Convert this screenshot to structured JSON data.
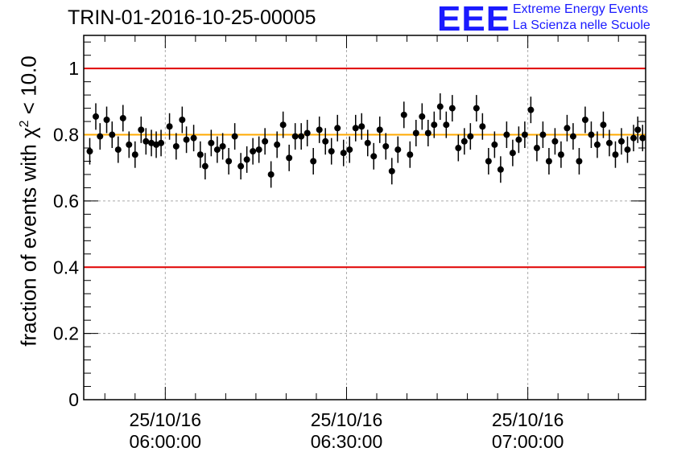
{
  "chart_data": {
    "type": "scatter",
    "title": "TRIN-01-2016-10-25-00005",
    "ylabel_pre": "fraction of events with ",
    "ylabel_chi": "χ",
    "ylabel_sup": "2",
    "ylabel_post": " < 10.0",
    "xlabel": "",
    "ylim": [
      0,
      1.1
    ],
    "yticks": [
      "0",
      "0.2",
      "0.4",
      "0.6",
      "0.8",
      "1"
    ],
    "xlim_minutes": [
      -13.5,
      79.5
    ],
    "xticks": [
      {
        "minute": 0,
        "date": "25/10/16",
        "time": "06:00:00"
      },
      {
        "minute": 30,
        "date": "25/10/16",
        "time": "06:30:00"
      },
      {
        "minute": 60,
        "date": "25/10/16",
        "time": "07:00:00"
      }
    ],
    "reference_lines": [
      {
        "y": 1.0,
        "color": "#e00000"
      },
      {
        "y": 0.4,
        "color": "#e00000"
      },
      {
        "y": 0.8,
        "color": "#ffaa00"
      }
    ],
    "error": 0.04,
    "points": [
      {
        "x": -12.5,
        "y": 0.75
      },
      {
        "x": -11.5,
        "y": 0.855
      },
      {
        "x": -10.8,
        "y": 0.795
      },
      {
        "x": -9.7,
        "y": 0.845
      },
      {
        "x": -8.8,
        "y": 0.8
      },
      {
        "x": -7.8,
        "y": 0.755
      },
      {
        "x": -7.0,
        "y": 0.85
      },
      {
        "x": -6.0,
        "y": 0.77
      },
      {
        "x": -5.0,
        "y": 0.74
      },
      {
        "x": -4.0,
        "y": 0.815
      },
      {
        "x": -3.2,
        "y": 0.78
      },
      {
        "x": -2.3,
        "y": 0.775
      },
      {
        "x": -1.5,
        "y": 0.77
      },
      {
        "x": -0.7,
        "y": 0.775
      },
      {
        "x": 0.7,
        "y": 0.825
      },
      {
        "x": 1.8,
        "y": 0.765
      },
      {
        "x": 2.8,
        "y": 0.845
      },
      {
        "x": 3.5,
        "y": 0.785
      },
      {
        "x": 4.7,
        "y": 0.79
      },
      {
        "x": 5.8,
        "y": 0.74
      },
      {
        "x": 6.6,
        "y": 0.705
      },
      {
        "x": 7.6,
        "y": 0.775
      },
      {
        "x": 8.6,
        "y": 0.755
      },
      {
        "x": 9.5,
        "y": 0.765
      },
      {
        "x": 10.5,
        "y": 0.72
      },
      {
        "x": 11.5,
        "y": 0.795
      },
      {
        "x": 12.5,
        "y": 0.705
      },
      {
        "x": 13.5,
        "y": 0.725
      },
      {
        "x": 14.5,
        "y": 0.75
      },
      {
        "x": 15.5,
        "y": 0.755
      },
      {
        "x": 16.5,
        "y": 0.78
      },
      {
        "x": 17.5,
        "y": 0.68
      },
      {
        "x": 18.5,
        "y": 0.77
      },
      {
        "x": 19.5,
        "y": 0.83
      },
      {
        "x": 20.5,
        "y": 0.73
      },
      {
        "x": 21.5,
        "y": 0.795
      },
      {
        "x": 22.5,
        "y": 0.795
      },
      {
        "x": 23.5,
        "y": 0.805
      },
      {
        "x": 24.5,
        "y": 0.72
      },
      {
        "x": 25.5,
        "y": 0.815
      },
      {
        "x": 26.5,
        "y": 0.78
      },
      {
        "x": 27.5,
        "y": 0.75
      },
      {
        "x": 28.5,
        "y": 0.82
      },
      {
        "x": 29.5,
        "y": 0.745
      },
      {
        "x": 30.5,
        "y": 0.755
      },
      {
        "x": 31.5,
        "y": 0.82
      },
      {
        "x": 32.5,
        "y": 0.825
      },
      {
        "x": 33.5,
        "y": 0.775
      },
      {
        "x": 34.5,
        "y": 0.735
      },
      {
        "x": 35.5,
        "y": 0.815
      },
      {
        "x": 36.5,
        "y": 0.765
      },
      {
        "x": 37.5,
        "y": 0.69
      },
      {
        "x": 38.5,
        "y": 0.755
      },
      {
        "x": 39.5,
        "y": 0.86
      },
      {
        "x": 40.5,
        "y": 0.74
      },
      {
        "x": 41.5,
        "y": 0.805
      },
      {
        "x": 42.5,
        "y": 0.855
      },
      {
        "x": 43.5,
        "y": 0.805
      },
      {
        "x": 44.5,
        "y": 0.83
      },
      {
        "x": 45.5,
        "y": 0.885
      },
      {
        "x": 46.5,
        "y": 0.83
      },
      {
        "x": 47.5,
        "y": 0.88
      },
      {
        "x": 48.5,
        "y": 0.76
      },
      {
        "x": 49.5,
        "y": 0.78
      },
      {
        "x": 50.5,
        "y": 0.795
      },
      {
        "x": 51.5,
        "y": 0.88
      },
      {
        "x": 52.5,
        "y": 0.825
      },
      {
        "x": 53.5,
        "y": 0.72
      },
      {
        "x": 54.5,
        "y": 0.77
      },
      {
        "x": 55.5,
        "y": 0.695
      },
      {
        "x": 56.5,
        "y": 0.8
      },
      {
        "x": 57.5,
        "y": 0.745
      },
      {
        "x": 58.5,
        "y": 0.785
      },
      {
        "x": 59.5,
        "y": 0.8
      },
      {
        "x": 60.5,
        "y": 0.875
      },
      {
        "x": 61.5,
        "y": 0.76
      },
      {
        "x": 62.5,
        "y": 0.8
      },
      {
        "x": 63.5,
        "y": 0.72
      },
      {
        "x": 64.5,
        "y": 0.78
      },
      {
        "x": 65.5,
        "y": 0.74
      },
      {
        "x": 66.5,
        "y": 0.82
      },
      {
        "x": 67.5,
        "y": 0.795
      },
      {
        "x": 68.5,
        "y": 0.72
      },
      {
        "x": 69.5,
        "y": 0.845
      },
      {
        "x": 70.5,
        "y": 0.8
      },
      {
        "x": 71.5,
        "y": 0.77
      },
      {
        "x": 72.5,
        "y": 0.83
      },
      {
        "x": 73.5,
        "y": 0.775
      },
      {
        "x": 74.5,
        "y": 0.74
      },
      {
        "x": 75.5,
        "y": 0.78
      },
      {
        "x": 76.5,
        "y": 0.755
      },
      {
        "x": 77.5,
        "y": 0.79
      },
      {
        "x": 78.2,
        "y": 0.815
      },
      {
        "x": 79.0,
        "y": 0.79
      }
    ]
  },
  "logo": {
    "mark": "EEE",
    "line1": "Extreme Energy Events",
    "line2": "La Scienza nelle Scuole"
  }
}
